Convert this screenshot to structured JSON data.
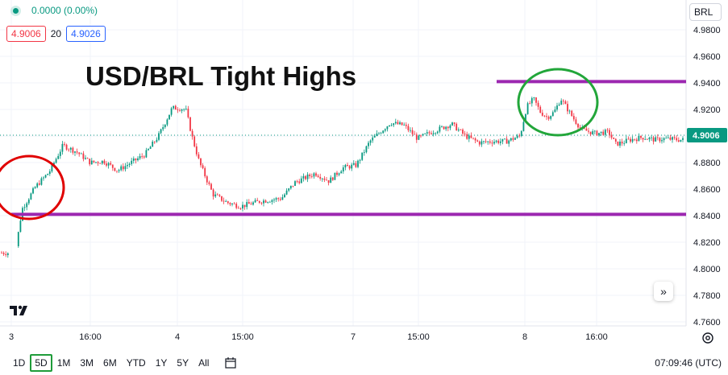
{
  "header": {
    "change_text": "0.0000 (0.00%)",
    "bid": "4.9006",
    "spread": "20",
    "ask": "4.9026",
    "currency": "BRL"
  },
  "colors": {
    "up": "#089981",
    "down": "#f23645",
    "level_line": "#9c27b0",
    "circle_red": "#e00000",
    "circle_green": "#22a63a",
    "axis_text": "#131722",
    "price_badge": "#089981"
  },
  "chart_data": {
    "type": "candlestick",
    "title": "USD/BRL Tight Highs",
    "ylim": [
      4.76,
      4.99
    ],
    "y_ticks": [
      "4.9800",
      "4.9600",
      "4.9400",
      "4.9200",
      "4.9000",
      "4.8800",
      "4.8600",
      "4.8400",
      "4.8200",
      "4.8000",
      "4.7800",
      "4.7600"
    ],
    "x_ticks": [
      "3",
      "16:00",
      "4",
      "15:00",
      "7",
      "15:00",
      "8",
      "16:00"
    ],
    "last_price": "4.9006",
    "levels": [
      4.941,
      4.841
    ],
    "close_path": [
      [
        0.0,
        4.812
      ],
      [
        0.02,
        4.812
      ],
      [
        0.03,
        4.845
      ],
      [
        0.05,
        4.862
      ],
      [
        0.07,
        4.873
      ],
      [
        0.09,
        4.893
      ],
      [
        0.11,
        4.888
      ],
      [
        0.13,
        4.88
      ],
      [
        0.15,
        4.881
      ],
      [
        0.17,
        4.874
      ],
      [
        0.19,
        4.88
      ],
      [
        0.21,
        4.886
      ],
      [
        0.23,
        4.9
      ],
      [
        0.25,
        4.921
      ],
      [
        0.26,
        4.921
      ],
      [
        0.27,
        4.92
      ],
      [
        0.28,
        4.898
      ],
      [
        0.29,
        4.88
      ],
      [
        0.31,
        4.856
      ],
      [
        0.33,
        4.85
      ],
      [
        0.35,
        4.847
      ],
      [
        0.38,
        4.851
      ],
      [
        0.41,
        4.853
      ],
      [
        0.43,
        4.865
      ],
      [
        0.46,
        4.872
      ],
      [
        0.48,
        4.866
      ],
      [
        0.5,
        4.876
      ],
      [
        0.52,
        4.878
      ],
      [
        0.54,
        4.896
      ],
      [
        0.57,
        4.91
      ],
      [
        0.59,
        4.908
      ],
      [
        0.61,
        4.898
      ],
      [
        0.63,
        4.903
      ],
      [
        0.66,
        4.909
      ],
      [
        0.68,
        4.9
      ],
      [
        0.7,
        4.895
      ],
      [
        0.72,
        4.896
      ],
      [
        0.74,
        4.896
      ],
      [
        0.76,
        4.9
      ],
      [
        0.77,
        4.922
      ],
      [
        0.78,
        4.928
      ],
      [
        0.79,
        4.918
      ],
      [
        0.8,
        4.914
      ],
      [
        0.81,
        4.918
      ],
      [
        0.82,
        4.928
      ],
      [
        0.83,
        4.92
      ],
      [
        0.84,
        4.912
      ],
      [
        0.85,
        4.905
      ],
      [
        0.87,
        4.902
      ],
      [
        0.89,
        4.903
      ],
      [
        0.9,
        4.894
      ],
      [
        0.91,
        4.895
      ],
      [
        0.92,
        4.897
      ],
      [
        0.94,
        4.899
      ],
      [
        0.96,
        4.897
      ],
      [
        0.97,
        4.898
      ],
      [
        1.0,
        4.897
      ]
    ],
    "annotations": [
      "red circle at session open near 4.85",
      "green circle at highs near 4.93"
    ]
  },
  "bottom_bar": {
    "timeframes": [
      "1D",
      "5D",
      "1M",
      "3M",
      "6M",
      "YTD",
      "1Y",
      "5Y",
      "All"
    ],
    "active": "5D",
    "time": "07:09:46 (UTC)"
  }
}
